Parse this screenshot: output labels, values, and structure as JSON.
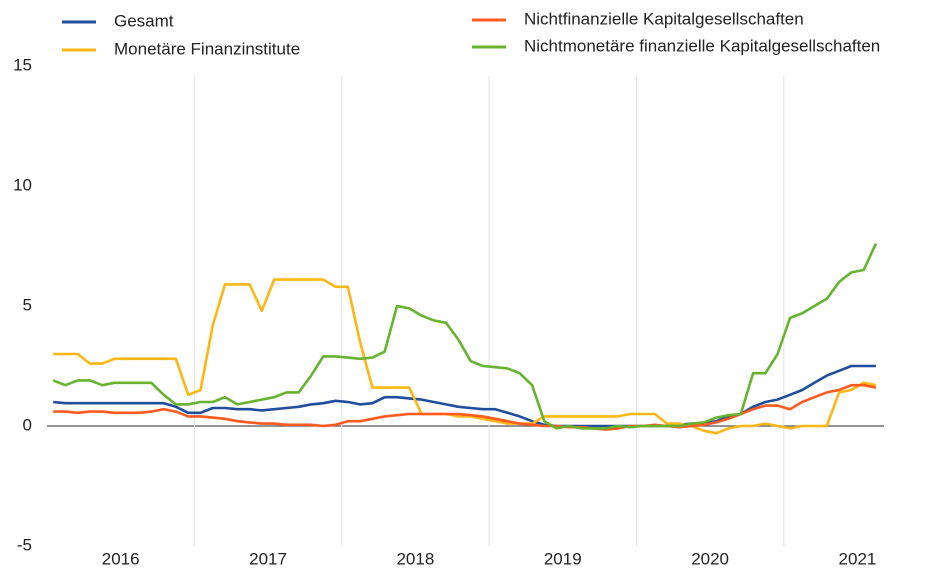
{
  "chart_data": {
    "type": "line",
    "x": [
      2016.042,
      2016.125,
      2016.208,
      2016.292,
      2016.375,
      2016.458,
      2016.542,
      2016.625,
      2016.708,
      2016.792,
      2016.875,
      2016.958,
      2017.042,
      2017.125,
      2017.208,
      2017.292,
      2017.375,
      2017.458,
      2017.542,
      2017.625,
      2017.708,
      2017.792,
      2017.875,
      2017.958,
      2018.042,
      2018.125,
      2018.208,
      2018.292,
      2018.375,
      2018.458,
      2018.542,
      2018.625,
      2018.708,
      2018.792,
      2018.875,
      2018.958,
      2019.042,
      2019.125,
      2019.208,
      2019.292,
      2019.375,
      2019.458,
      2019.542,
      2019.625,
      2019.708,
      2019.792,
      2019.875,
      2019.958,
      2020.042,
      2020.125,
      2020.208,
      2020.292,
      2020.375,
      2020.458,
      2020.542,
      2020.625,
      2020.708,
      2020.792,
      2020.875,
      2020.958,
      2021.042,
      2021.125,
      2021.208,
      2021.292,
      2021.375,
      2021.458,
      2021.542,
      2021.625
    ],
    "series": [
      {
        "name": "Gesamt",
        "color": "#1f4e9c",
        "values": [
          1.0,
          0.95,
          0.95,
          0.95,
          0.95,
          0.95,
          0.95,
          0.95,
          0.95,
          0.95,
          0.8,
          0.55,
          0.55,
          0.75,
          0.75,
          0.7,
          0.7,
          0.65,
          0.7,
          0.75,
          0.8,
          0.9,
          0.95,
          1.05,
          1.0,
          0.9,
          0.95,
          1.2,
          1.2,
          1.15,
          1.1,
          1.0,
          0.9,
          0.8,
          0.75,
          0.7,
          0.7,
          0.55,
          0.4,
          0.2,
          0.05,
          0.0,
          0.0,
          0.0,
          0.0,
          0.0,
          0.0,
          0.0,
          0.0,
          0.0,
          0.0,
          0.05,
          0.1,
          0.1,
          0.2,
          0.4,
          0.5,
          0.8,
          1.0,
          1.1,
          1.3,
          1.5,
          1.8,
          2.1,
          2.3,
          2.5,
          2.5,
          2.5
        ]
      },
      {
        "name": "Monetäre Finanzinstitute",
        "color": "#fbb714",
        "values": [
          3.0,
          3.0,
          3.0,
          2.6,
          2.6,
          2.8,
          2.8,
          2.8,
          2.8,
          2.8,
          2.8,
          1.3,
          1.5,
          4.2,
          5.9,
          5.9,
          5.9,
          4.8,
          6.1,
          6.1,
          6.1,
          6.1,
          6.1,
          5.8,
          5.8,
          3.5,
          1.6,
          1.6,
          1.6,
          1.6,
          0.5,
          0.5,
          0.5,
          0.4,
          0.4,
          0.3,
          0.2,
          0.1,
          0.1,
          0.1,
          0.4,
          0.4,
          0.4,
          0.4,
          0.4,
          0.4,
          0.4,
          0.5,
          0.5,
          0.5,
          0.1,
          0.1,
          0.0,
          -0.2,
          -0.3,
          -0.1,
          0.0,
          0.0,
          0.1,
          0.0,
          -0.1,
          0.0,
          0.0,
          0.0,
          1.4,
          1.5,
          1.8,
          1.7
        ]
      },
      {
        "name": "Nichtfinanzielle Kapitalgesellschaften",
        "color": "#ff5a1f",
        "values": [
          0.6,
          0.6,
          0.55,
          0.6,
          0.6,
          0.55,
          0.55,
          0.55,
          0.6,
          0.7,
          0.6,
          0.4,
          0.4,
          0.35,
          0.3,
          0.2,
          0.15,
          0.1,
          0.1,
          0.05,
          0.05,
          0.05,
          0.0,
          0.05,
          0.2,
          0.2,
          0.3,
          0.4,
          0.45,
          0.5,
          0.5,
          0.5,
          0.5,
          0.5,
          0.45,
          0.4,
          0.3,
          0.2,
          0.1,
          0.05,
          0.0,
          0.0,
          -0.05,
          -0.05,
          -0.1,
          -0.15,
          -0.1,
          0.0,
          0.0,
          0.05,
          0.0,
          -0.05,
          0.0,
          0.05,
          0.15,
          0.3,
          0.5,
          0.7,
          0.85,
          0.85,
          0.7,
          1.0,
          1.2,
          1.4,
          1.5,
          1.7,
          1.7,
          1.6
        ]
      },
      {
        "name": "Nichtmonetäre finanzielle Kapitalgesellschaften",
        "color": "#65b32e",
        "values": [
          1.9,
          1.7,
          1.9,
          1.9,
          1.7,
          1.8,
          1.8,
          1.8,
          1.8,
          1.3,
          0.9,
          0.9,
          1.0,
          1.0,
          1.2,
          0.9,
          1.0,
          1.1,
          1.2,
          1.4,
          1.4,
          2.1,
          2.9,
          2.9,
          2.85,
          2.8,
          2.85,
          3.1,
          5.0,
          4.9,
          4.6,
          4.4,
          4.3,
          3.6,
          2.7,
          2.5,
          2.45,
          2.4,
          2.2,
          1.7,
          0.2,
          -0.1,
          0.0,
          -0.1,
          -0.1,
          -0.1,
          0.0,
          -0.05,
          0.0,
          0.0,
          0.0,
          0.0,
          0.1,
          0.15,
          0.35,
          0.45,
          0.5,
          2.2,
          2.2,
          3.0,
          4.5,
          4.7,
          5.0,
          5.3,
          6.0,
          6.4,
          6.5,
          7.6
        ]
      }
    ],
    "xlim": [
      2016,
      2021.68
    ],
    "xticks": [
      {
        "value": 2016.5,
        "label": "2016"
      },
      {
        "value": 2017.5,
        "label": "2017"
      },
      {
        "value": 2018.5,
        "label": "2018"
      },
      {
        "value": 2019.5,
        "label": "2019"
      },
      {
        "value": 2020.5,
        "label": "2020"
      },
      {
        "value": 2021.5,
        "label": "2021"
      }
    ],
    "ylim": [
      -5,
      15
    ],
    "yticks": [
      -5,
      0,
      5,
      10,
      15
    ]
  }
}
